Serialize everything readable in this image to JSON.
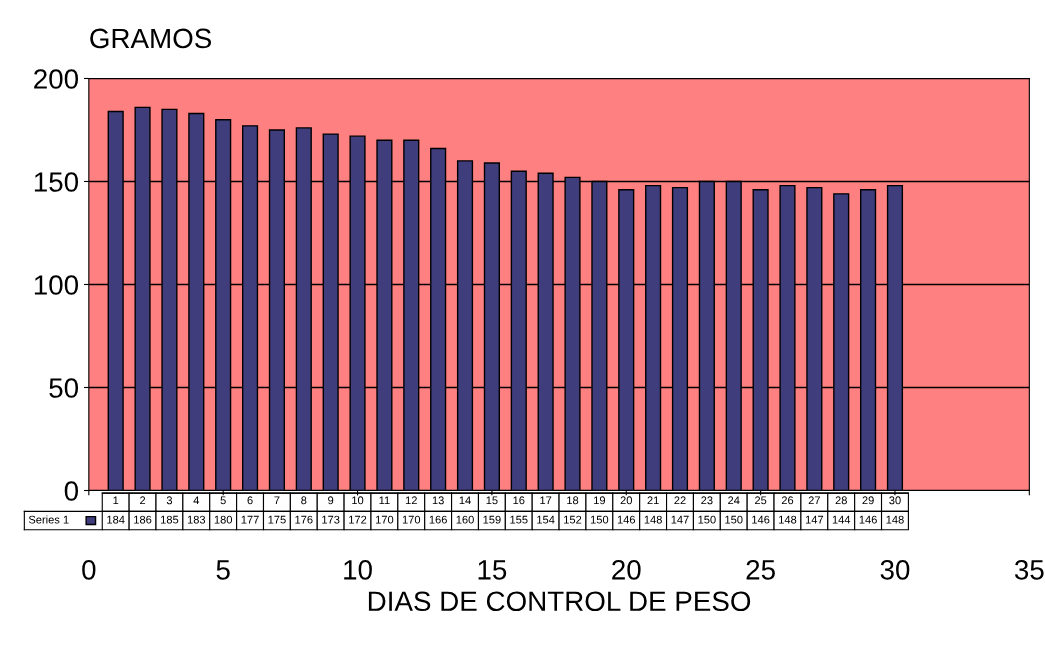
{
  "chart_data": {
    "type": "bar",
    "ylabel": "GRAMOS",
    "xlabel": "DIAS DE CONTROL DE PESO",
    "x": [
      1,
      2,
      3,
      4,
      5,
      6,
      7,
      8,
      9,
      10,
      11,
      12,
      13,
      14,
      15,
      16,
      17,
      18,
      19,
      20,
      21,
      22,
      23,
      24,
      25,
      26,
      27,
      28,
      29,
      30
    ],
    "series": [
      {
        "name": "Series 1",
        "color": "#3f3d7c",
        "values": [
          184,
          186,
          185,
          183,
          180,
          177,
          175,
          176,
          173,
          172,
          170,
          170,
          166,
          160,
          159,
          155,
          154,
          152,
          150,
          146,
          148,
          147,
          150,
          150,
          146,
          148,
          147,
          144,
          146,
          148
        ]
      }
    ],
    "xlim": [
      0,
      35
    ],
    "xticks": [
      0,
      5,
      10,
      15,
      20,
      25,
      30,
      35
    ],
    "x2lim": [
      0,
      35
    ],
    "x2ticks": [
      1,
      2,
      3,
      4,
      5,
      6,
      7,
      8,
      9,
      10,
      11,
      12,
      13,
      14,
      15,
      16,
      17,
      18,
      19,
      20,
      21,
      22,
      23,
      24,
      25,
      26,
      27,
      28,
      29,
      30
    ],
    "ylim": [
      0,
      200
    ],
    "yticks": [
      0,
      50,
      100,
      150,
      200
    ],
    "grid": "y",
    "data_labels": true
  }
}
